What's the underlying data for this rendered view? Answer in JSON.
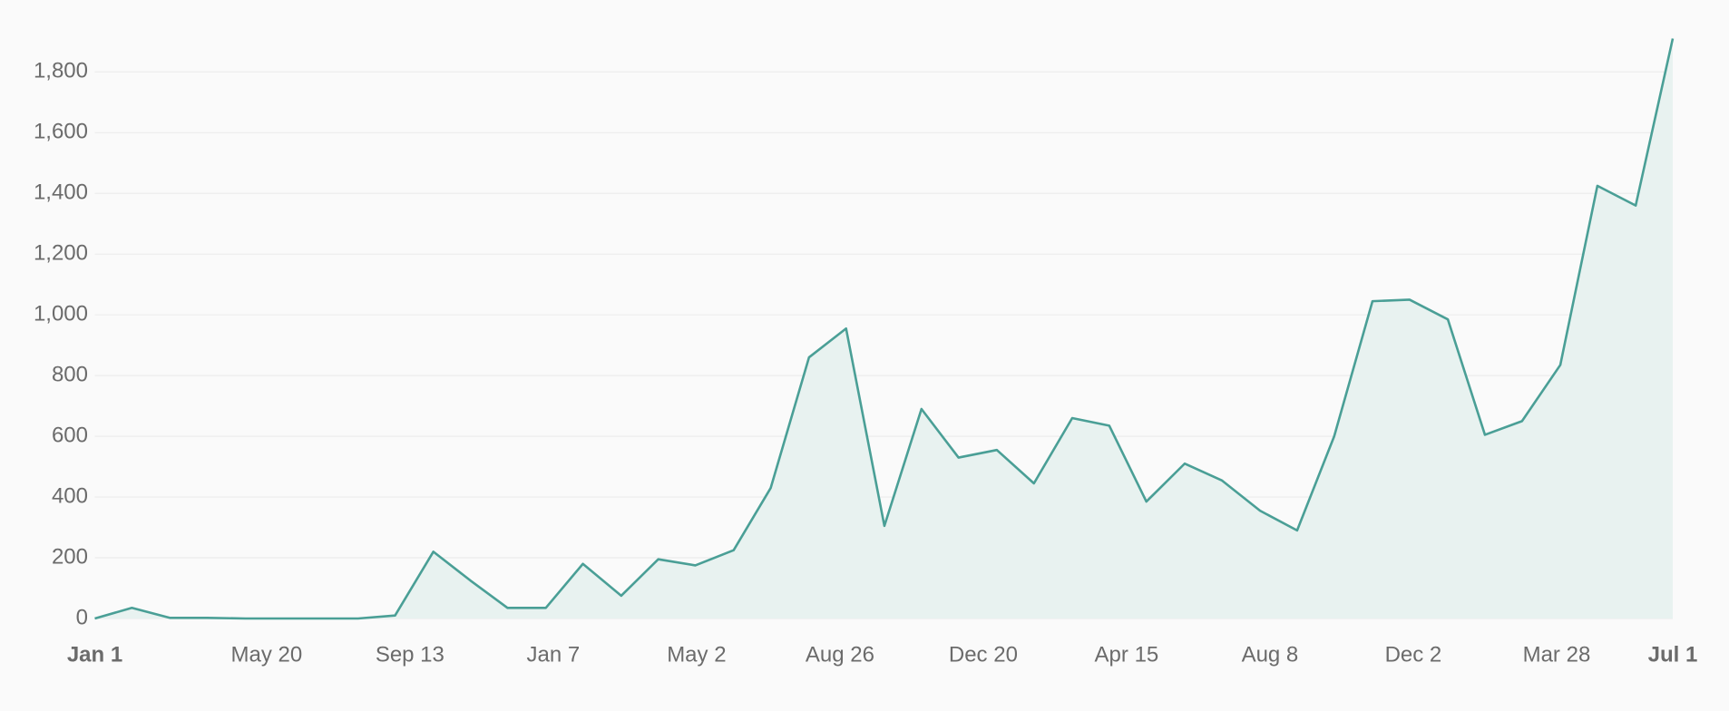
{
  "chart_data": {
    "type": "area",
    "x": [
      0,
      30,
      61,
      91,
      122,
      152,
      182,
      213,
      243,
      274,
      304,
      334,
      365,
      395,
      426,
      456,
      486,
      517,
      547,
      578,
      608,
      639,
      669,
      699,
      730,
      760,
      791,
      821,
      851,
      882,
      912,
      943,
      973,
      1003,
      1034,
      1064,
      1095,
      1125,
      1155,
      1186,
      1216,
      1247,
      1277
    ],
    "series": [
      {
        "color": "#4a9f96",
        "fill": "#e8f2f0",
        "values": [
          0,
          35,
          2,
          2,
          0,
          0,
          0,
          0,
          10,
          220,
          125,
          35,
          35,
          180,
          75,
          195,
          175,
          225,
          430,
          860,
          955,
          305,
          690,
          530,
          555,
          445,
          660,
          635,
          385,
          510,
          455,
          355,
          290,
          600,
          1045,
          1050,
          985,
          605,
          650,
          835,
          1425,
          1360,
          1910
        ]
      }
    ],
    "xlim": [
      0,
      1277
    ],
    "xticks": [
      {
        "value": 0,
        "label": "Jan 1"
      },
      {
        "value": 139,
        "label": "May 20"
      },
      {
        "value": 255,
        "label": "Sep 13"
      },
      {
        "value": 371,
        "label": "Jan 7"
      },
      {
        "value": 487,
        "label": "May 2"
      },
      {
        "value": 603,
        "label": "Aug 26"
      },
      {
        "value": 719,
        "label": "Dec 20"
      },
      {
        "value": 835,
        "label": "Apr 15"
      },
      {
        "value": 951,
        "label": "Aug 8"
      },
      {
        "value": 1067,
        "label": "Dec 2"
      },
      {
        "value": 1183,
        "label": "Mar 28"
      },
      {
        "value": 1277,
        "label": "Jul 1"
      }
    ],
    "ylim": [
      0,
      1910
    ],
    "yticks": [
      0,
      200,
      400,
      600,
      800,
      1000,
      1200,
      1400,
      1600,
      1800
    ],
    "ytick_labels": [
      "0",
      "200",
      "400",
      "600",
      "800",
      "1,000",
      "1,200",
      "1,400",
      "1,600",
      "1,800"
    ],
    "grid": true
  }
}
